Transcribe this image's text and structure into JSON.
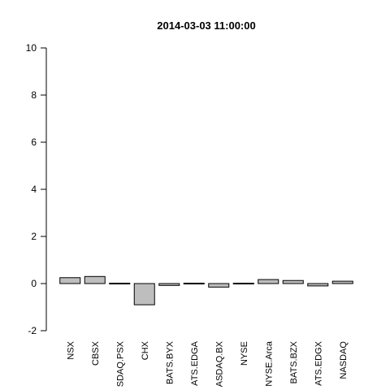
{
  "chart_data": {
    "type": "bar",
    "title": "2014-03-03 11:00:00",
    "xlabel": "",
    "ylabel": "",
    "ylim": [
      -2,
      10
    ],
    "yticks": [
      -2,
      0,
      2,
      4,
      6,
      8,
      10
    ],
    "grid": false,
    "categories": [
      "NSX",
      "CBSX",
      "SDAQ.PSX",
      "CHX",
      "BATS.BYX",
      "ATS.EDGA",
      "ASDAQ.BX",
      "NYSE",
      "NYSE.Arca",
      "BATS.BZX",
      "ATS.EDGX",
      "NASDAQ"
    ],
    "values": [
      0.25,
      0.3,
      0.03,
      -0.9,
      -0.08,
      -0.03,
      -0.15,
      0.01,
      0.17,
      0.13,
      -0.1,
      0.1
    ],
    "bar_fill": "#bebebe",
    "bar_stroke": "#000000"
  }
}
